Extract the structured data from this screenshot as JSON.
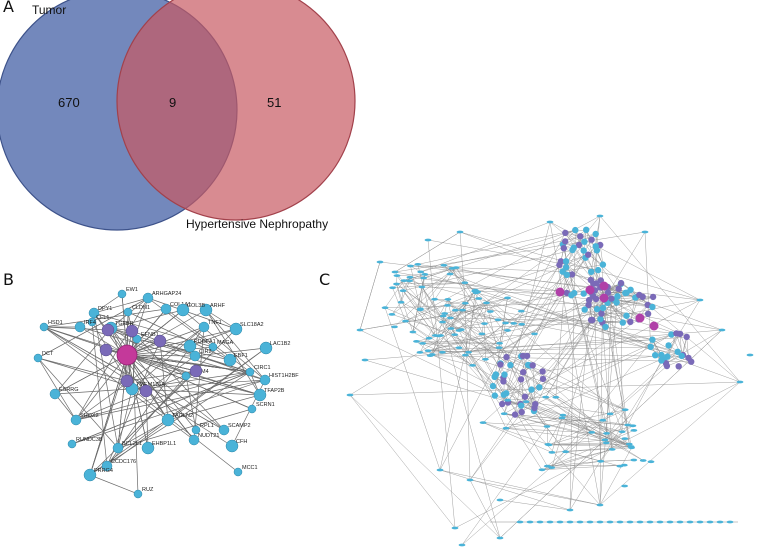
{
  "panels": {
    "a": "A",
    "b": "B",
    "c": "C"
  },
  "venn": {
    "set_left_label": "Tumor",
    "set_right_label": "Hypertensive Nephropathy",
    "only_left": "670",
    "intersection": "9",
    "only_right": "51",
    "colors": {
      "left": "#5a73b0",
      "right": "#c85a63",
      "overlap": "#9b4f6e"
    }
  },
  "network_b": {
    "node_colors": {
      "primary": "#4ab3d8",
      "secondary": "#7a6ab8",
      "hub": "#c4399a"
    },
    "gene_labels": [
      "EW1",
      "ARHGAP24",
      "ARHF",
      "CLDN1",
      "COL1A1",
      "COL3B",
      "HSD1",
      "DPY1",
      "SLC18A2",
      "CFL1",
      "IRF4",
      "TGFBR",
      "EFNB1",
      "TNF1",
      "PDGFA1",
      "MAGA",
      "CIR2",
      "EBF1",
      "DCT",
      "HIST1H2BF",
      "LAC1B2",
      "CIRC1",
      "ESRRG",
      "TMEM176A",
      "RUNDC3B",
      "CCDC176",
      "PRRG4",
      "RUZ",
      "SHOX2",
      "EHBP1L1",
      "RPL1",
      "BCL2L1",
      "TAGLN2",
      "MCC1",
      "SCAMP2",
      "TFAP2B",
      "SCRN1",
      "NUDT21",
      "CFH",
      "LRRM4"
    ]
  }
}
